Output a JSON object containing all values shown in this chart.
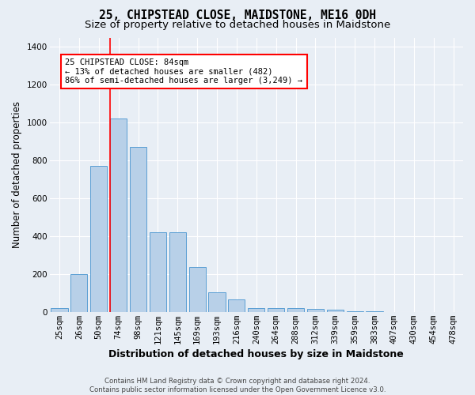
{
  "title": "25, CHIPSTEAD CLOSE, MAIDSTONE, ME16 0DH",
  "subtitle": "Size of property relative to detached houses in Maidstone",
  "xlabel": "Distribution of detached houses by size in Maidstone",
  "ylabel": "Number of detached properties",
  "categories": [
    "25sqm",
    "26sqm",
    "50sqm",
    "74sqm",
    "98sqm",
    "121sqm",
    "145sqm",
    "169sqm",
    "193sqm",
    "216sqm",
    "240sqm",
    "264sqm",
    "288sqm",
    "312sqm",
    "339sqm",
    "359sqm",
    "383sqm",
    "407sqm",
    "430sqm",
    "454sqm",
    "478sqm"
  ],
  "values": [
    20,
    200,
    770,
    1020,
    870,
    420,
    420,
    235,
    105,
    65,
    20,
    20,
    20,
    15,
    10,
    5,
    5,
    0,
    0,
    0,
    0
  ],
  "bar_color": "#b8d0e8",
  "bar_edge_color": "#5a9fd4",
  "bar_edge_width": 0.7,
  "annotation_text": "25 CHIPSTEAD CLOSE: 84sqm\n← 13% of detached houses are smaller (482)\n86% of semi-detached houses are larger (3,249) →",
  "annotation_box_color": "white",
  "annotation_box_edge_color": "red",
  "ylim": [
    0,
    1450
  ],
  "yticks": [
    0,
    200,
    400,
    600,
    800,
    1000,
    1200,
    1400
  ],
  "title_fontsize": 10.5,
  "subtitle_fontsize": 9.5,
  "xlabel_fontsize": 9,
  "ylabel_fontsize": 8.5,
  "tick_fontsize": 7.5,
  "annotation_fontsize": 7.5,
  "footer_text": "Contains HM Land Registry data © Crown copyright and database right 2024.\nContains public sector information licensed under the Open Government Licence v3.0.",
  "bg_color": "#e8eef5",
  "plot_bg_color": "#e8eef5",
  "grid_color": "white",
  "red_line_index": 2.58
}
